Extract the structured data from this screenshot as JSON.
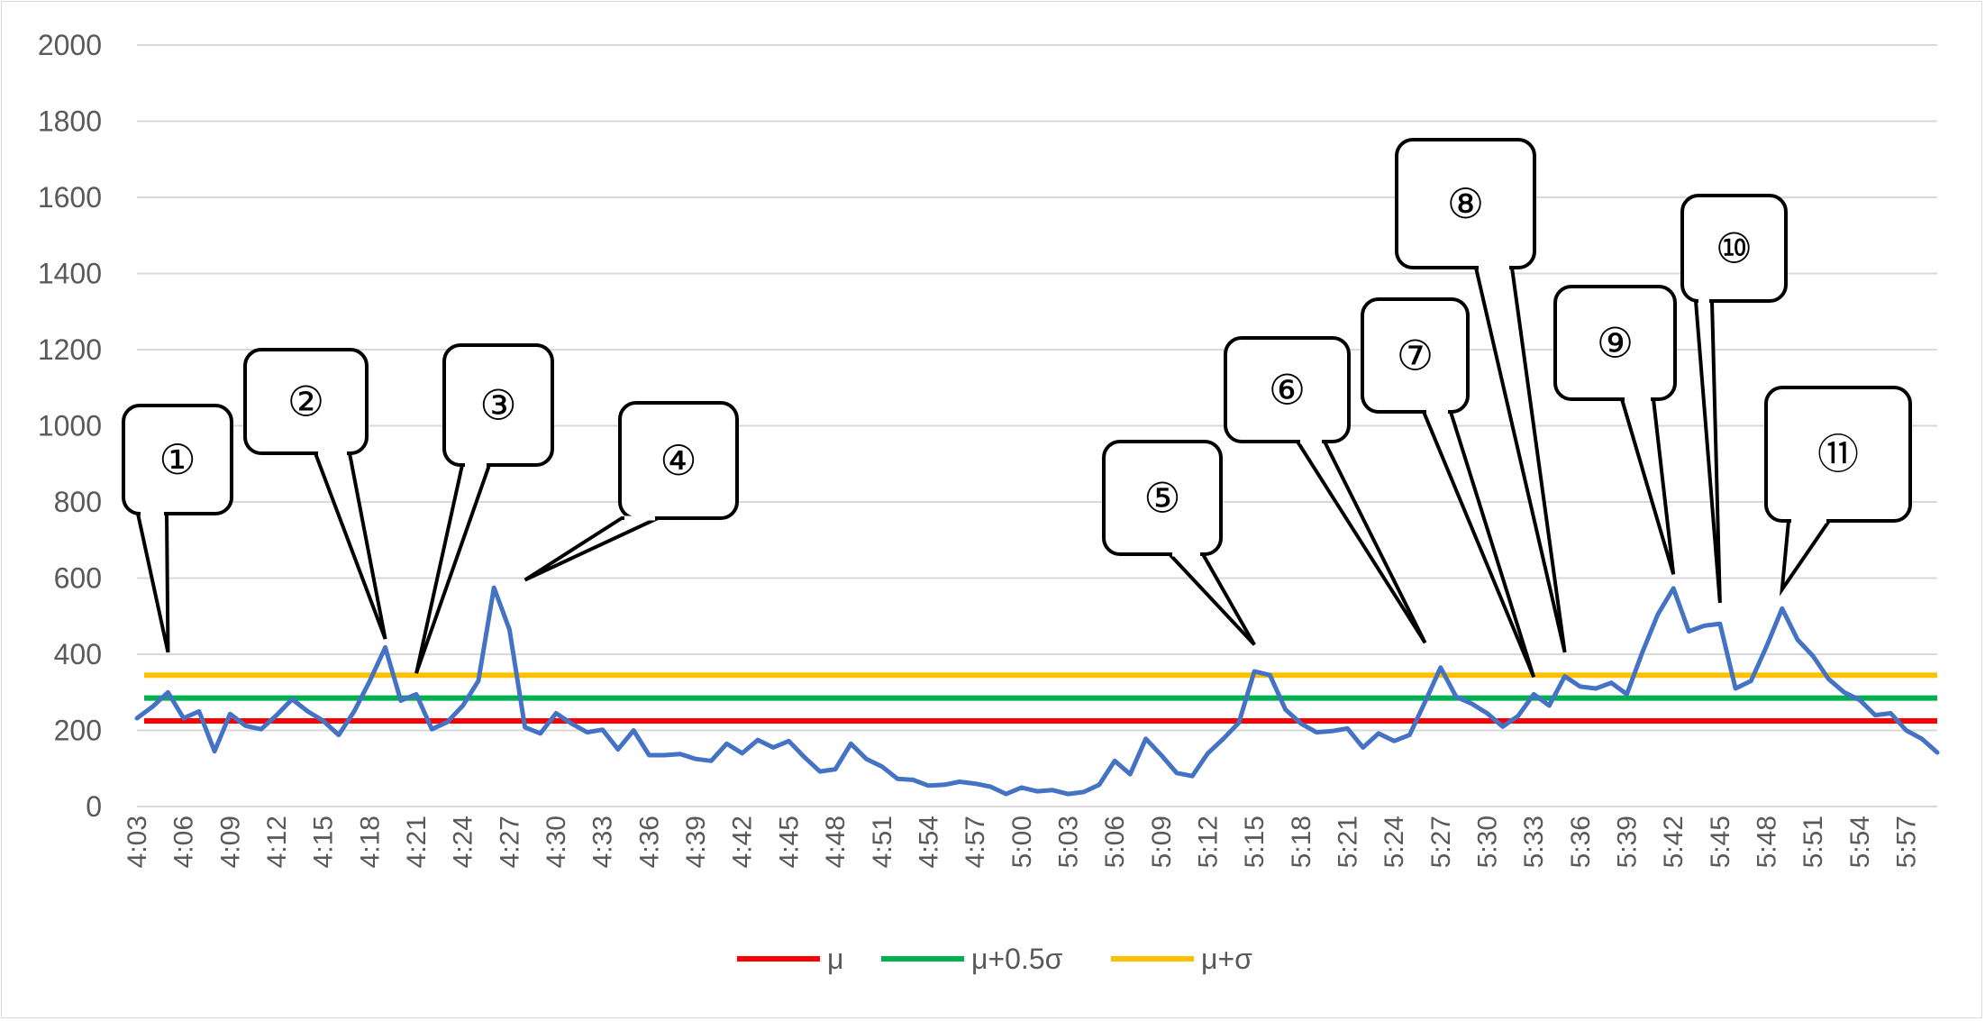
{
  "chart_data": {
    "type": "line",
    "title": "",
    "xlabel": "",
    "ylabel": "",
    "ylim": [
      0,
      2000
    ],
    "y_ticks": [
      0,
      200,
      400,
      600,
      800,
      1000,
      1200,
      1400,
      1600,
      1800,
      2000
    ],
    "grid": true,
    "legend_position": "bottom",
    "x_tick_labels": [
      "4:03",
      "4:06",
      "4:09",
      "4:12",
      "4:15",
      "4:18",
      "4:21",
      "4:24",
      "4:27",
      "4:30",
      "4:33",
      "4:36",
      "4:39",
      "4:42",
      "4:45",
      "4:48",
      "4:51",
      "4:54",
      "4:57",
      "5:00",
      "5:03",
      "5:06",
      "5:09",
      "5:12",
      "5:15",
      "5:18",
      "5:21",
      "5:24",
      "5:27",
      "5:30",
      "5:33",
      "5:36",
      "5:39",
      "5:42",
      "5:45",
      "5:48",
      "5:51",
      "5:54",
      "5:57"
    ],
    "x_start": "4:03",
    "x_step_minutes": 1,
    "series": [
      {
        "name": "",
        "color": "#4472c4",
        "values": [
          232,
          262,
          300,
          232,
          250,
          145,
          243,
          212,
          203,
          240,
          282,
          250,
          225,
          188,
          250,
          330,
          418,
          278,
          295,
          203,
          222,
          265,
          330,
          575,
          465,
          208,
          192,
          245,
          218,
          195,
          202,
          150,
          200,
          135,
          135,
          138,
          125,
          120,
          165,
          140,
          175,
          155,
          172,
          130,
          92,
          98,
          165,
          125,
          105,
          73,
          70,
          55,
          57,
          65,
          60,
          52,
          33,
          50,
          40,
          43,
          33,
          38,
          57,
          120,
          85,
          178,
          135,
          88,
          80,
          140,
          178,
          220,
          355,
          345,
          255,
          218,
          195,
          198,
          205,
          155,
          192,
          172,
          188,
          275,
          365,
          288,
          270,
          245,
          210,
          238,
          295,
          265,
          342,
          315,
          310,
          325,
          295,
          405,
          505,
          573,
          460,
          475,
          480,
          310,
          330,
          420,
          520,
          438,
          395,
          335,
          300,
          280,
          240,
          245,
          200,
          178,
          142
        ]
      },
      {
        "name": "μ",
        "color": "#ff0000",
        "values": [
          225
        ]
      },
      {
        "name": "μ+0.5σ",
        "color": "#00b050",
        "values": [
          285
        ]
      },
      {
        "name": "μ+σ",
        "color": "#ffc000",
        "values": [
          345
        ]
      }
    ],
    "annotations": [
      {
        "label": "①",
        "x": "4:05",
        "y": 405
      },
      {
        "label": "②",
        "x": "4:19",
        "y": 440
      },
      {
        "label": "③",
        "x": "4:21",
        "y": 350
      },
      {
        "label": "④",
        "x": "4:28",
        "y": 595
      },
      {
        "label": "⑤",
        "x": "5:15",
        "y": 425
      },
      {
        "label": "⑥",
        "x": "5:26",
        "y": 430
      },
      {
        "label": "⑦",
        "x": "5:33",
        "y": 340
      },
      {
        "label": "⑧",
        "x": "5:35",
        "y": 405
      },
      {
        "label": "⑨",
        "x": "5:42",
        "y": 610
      },
      {
        "label": "⑩",
        "x": "5:45",
        "y": 535
      },
      {
        "label": "⑪",
        "x": "5:49",
        "y": 570
      }
    ]
  }
}
